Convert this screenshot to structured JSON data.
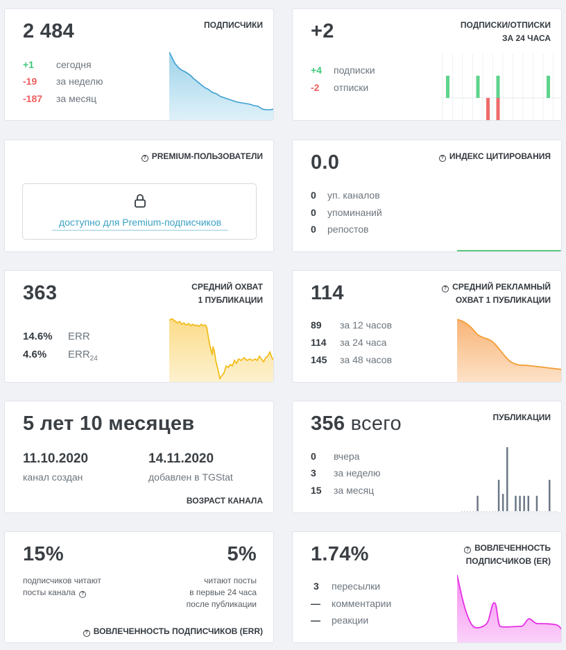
{
  "subscribers": {
    "value": "2 484",
    "header": "ПОДПИСЧИКИ",
    "rows": [
      {
        "value": "+1",
        "label": "сегодня"
      },
      {
        "value": "-19",
        "label": "за неделю"
      },
      {
        "value": "-187",
        "label": "за месяц"
      }
    ],
    "color": "#3b9fd0"
  },
  "subs_unsubs": {
    "value": "+2",
    "header_line1": "ПОДПИСКИ/ОТПИСКИ",
    "header_line2": "ЗА 24 ЧАСА",
    "rows": [
      {
        "value": "+4",
        "label": "подписки"
      },
      {
        "value": "-2",
        "label": "отписки"
      }
    ],
    "bar_colors": {
      "up": "#5fd38c",
      "down": "#ef6b6b"
    },
    "up_bars": [
      1,
      0,
      0,
      1,
      0,
      1,
      0,
      0,
      0,
      0,
      1
    ],
    "down_bars": [
      0,
      0,
      0,
      0,
      1,
      1,
      0,
      0,
      0,
      0,
      0
    ]
  },
  "premium": {
    "header": "PREMIUM-ПОЛЬЗОВАТЕЛИ",
    "icon": "lock-icon",
    "link": "доступно для Premium-подписчиков"
  },
  "citation": {
    "value": "0.0",
    "header": "ИНДЕКС ЦИТИРОВАНИЯ",
    "rows": [
      {
        "value": "0",
        "label": "уп. каналов"
      },
      {
        "value": "0",
        "label": "упоминаний"
      },
      {
        "value": "0",
        "label": "репостов"
      }
    ],
    "line_color": "#5fc87e"
  },
  "reach": {
    "value": "363",
    "header_line1": "СРЕДНИЙ ОХВАТ",
    "header_line2": "1 ПУБЛИКАЦИИ",
    "rows": [
      {
        "value": "14.6%",
        "label": "ERR"
      },
      {
        "value": "4.6%",
        "label": "ERR",
        "sub": "24"
      }
    ],
    "color": "#f2bd1c"
  },
  "ad_reach": {
    "value": "114",
    "header_line1": "СРЕДНИЙ РЕКЛАМНЫЙ",
    "header_line2": "ОХВАТ 1 ПУБЛИКАЦИИ",
    "rows": [
      {
        "value": "89",
        "label": "за 12 часов"
      },
      {
        "value": "114",
        "label": "за 24 часа"
      },
      {
        "value": "145",
        "label": "за 48 часов"
      }
    ],
    "color": "#f39c32"
  },
  "age": {
    "value": "5 лет 10 месяцев",
    "created_date": "11.10.2020",
    "created_label": "канал создан",
    "added_date": "14.11.2020",
    "added_label": "добавлен в TGStat",
    "footer": "ВОЗРАСТ КАНАЛА"
  },
  "posts": {
    "value": "356",
    "value_suffix": "всего",
    "header": "ПУБЛИКАЦИИ",
    "rows": [
      {
        "value": "0",
        "label": "вчера"
      },
      {
        "value": "3",
        "label": "за неделю"
      },
      {
        "value": "15",
        "label": "за месяц"
      }
    ],
    "bar_color": "#6b7684",
    "bars": [
      0,
      0,
      0,
      0.24,
      0,
      0,
      0,
      0,
      0.49,
      0.27,
      1.0,
      0,
      0.24,
      0.24,
      0.24,
      0.24,
      0,
      0.24,
      0,
      0,
      0.49,
      0
    ]
  },
  "err": {
    "left_value": "15%",
    "left_label_line1": "подписчиков читают",
    "left_label_line2": "посты канала",
    "right_value": "5%",
    "right_label_line1": "читают посты",
    "right_label_line2": "в первые 24 часа",
    "right_label_line3": "после публикации",
    "footer": "ВОВЛЕЧЕННОСТЬ ПОДПИСЧИКОВ (ERR)"
  },
  "er": {
    "value": "1.74%",
    "header_line1": "ВОВЛЕЧЕННОСТЬ",
    "header_line2": "ПОДПИСЧИКОВ (ER)",
    "rows": [
      {
        "value": "3",
        "label": "пересылки"
      },
      {
        "value": "—",
        "label": "комментарии"
      },
      {
        "value": "—",
        "label": "реакции"
      }
    ],
    "color": "#e62ee6"
  }
}
